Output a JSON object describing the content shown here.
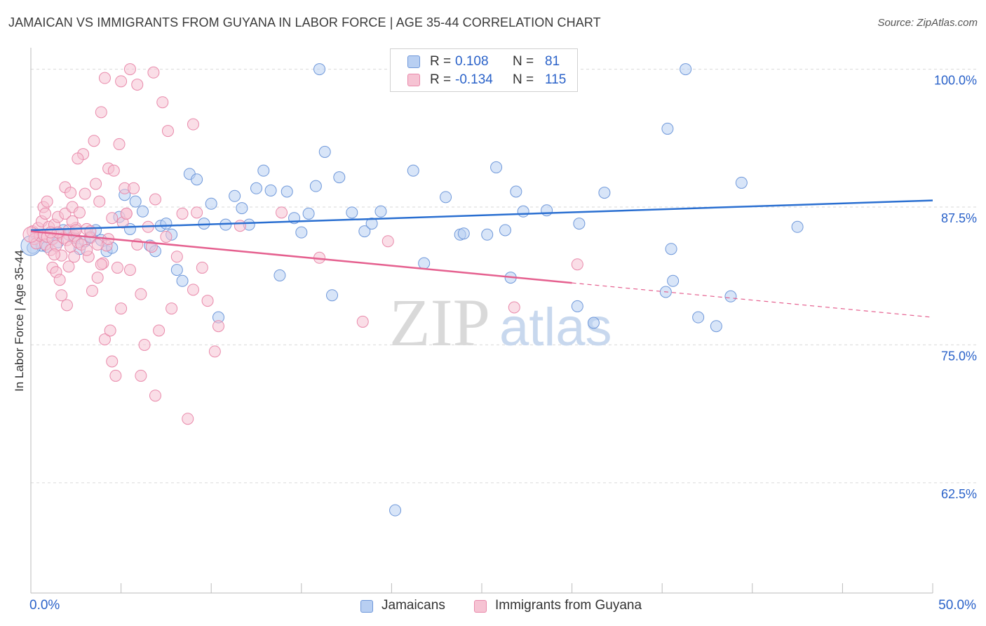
{
  "title": "JAMAICAN VS IMMIGRANTS FROM GUYANA IN LABOR FORCE | AGE 35-44 CORRELATION CHART",
  "source": "Source: ZipAtlas.com",
  "watermark": {
    "part1": "ZIP",
    "part2": "atlas"
  },
  "colors": {
    "blue": "#2a6fd1",
    "pink": "#e5608f",
    "blue_fill": "#b8cff2",
    "pink_fill": "#f6c3d3",
    "tick_text": "#2a62c9",
    "grid": "#d9d9d9"
  },
  "legend": {
    "rows": [
      {
        "r_label": "R =",
        "r_value": "0.108",
        "n_label": "N =",
        "n_value": "81"
      },
      {
        "r_label": "R =",
        "r_value": "-0.134",
        "n_label": "N =",
        "n_value": "115"
      }
    ]
  },
  "bottom_legend": {
    "blue": "Jamaicans",
    "pink": "Immigrants from Guyana"
  },
  "chart_data": {
    "type": "scatter",
    "title": "JAMAICAN VS IMMIGRANTS FROM GUYANA IN LABOR FORCE | AGE 35-44 CORRELATION CHART",
    "xlabel": "",
    "ylabel": "In Labor Force | Age 35-44",
    "xlim": [
      0,
      50
    ],
    "ylim": [
      52.5,
      101.5
    ],
    "x_tick_labels": [
      "0.0%",
      "50.0%"
    ],
    "y_ticks": [
      62.5,
      75.0,
      87.5,
      100.0
    ],
    "y_tick_labels": [
      "62.5%",
      "75.0%",
      "87.5%",
      "100.0%"
    ],
    "grid": "horizontal dashed",
    "series": [
      {
        "name": "Jamaicans",
        "color": "#2a6fd1",
        "trend": {
          "x0": 0,
          "y0": 85.4,
          "x1": 50,
          "y1": 88.1,
          "solid_until": 50
        },
        "points": [
          [
            0.1,
            83.8
          ],
          [
            0.3,
            85.0
          ],
          [
            0.6,
            84.0
          ],
          [
            0.9,
            83.9
          ],
          [
            1.2,
            84.6
          ],
          [
            1.5,
            84.3
          ],
          [
            1.8,
            85.4
          ],
          [
            2.1,
            85.0
          ],
          [
            2.4,
            84.7
          ],
          [
            2.7,
            83.7
          ],
          [
            3.0,
            84.4
          ],
          [
            3.3,
            84.8
          ],
          [
            3.6,
            85.4
          ],
          [
            3.9,
            84.5
          ],
          [
            4.2,
            83.5
          ],
          [
            4.5,
            83.8
          ],
          [
            4.9,
            86.6
          ],
          [
            5.2,
            88.6
          ],
          [
            5.5,
            85.5
          ],
          [
            5.8,
            88.0
          ],
          [
            6.2,
            87.1
          ],
          [
            6.6,
            84.0
          ],
          [
            6.9,
            83.5
          ],
          [
            7.2,
            85.8
          ],
          [
            7.5,
            86.0
          ],
          [
            7.8,
            85.0
          ],
          [
            8.1,
            81.8
          ],
          [
            8.4,
            80.8
          ],
          [
            8.8,
            90.5
          ],
          [
            9.2,
            90.0
          ],
          [
            9.6,
            86.0
          ],
          [
            10.0,
            87.8
          ],
          [
            10.4,
            77.5
          ],
          [
            10.8,
            85.9
          ],
          [
            11.3,
            88.5
          ],
          [
            11.7,
            87.4
          ],
          [
            12.1,
            85.9
          ],
          [
            12.5,
            89.2
          ],
          [
            12.9,
            90.8
          ],
          [
            13.3,
            89.0
          ],
          [
            13.8,
            81.3
          ],
          [
            14.2,
            88.9
          ],
          [
            14.6,
            86.5
          ],
          [
            15.0,
            85.2
          ],
          [
            15.4,
            86.9
          ],
          [
            15.8,
            89.4
          ],
          [
            16.3,
            92.5
          ],
          [
            16.7,
            79.5
          ],
          [
            17.1,
            90.2
          ],
          [
            16.0,
            100.0
          ],
          [
            17.8,
            87.0
          ],
          [
            18.5,
            85.3
          ],
          [
            18.9,
            86.0
          ],
          [
            19.4,
            87.1
          ],
          [
            20.2,
            60.0
          ],
          [
            21.2,
            90.8
          ],
          [
            21.8,
            82.4
          ],
          [
            23.0,
            88.4
          ],
          [
            23.8,
            85.0
          ],
          [
            24.0,
            85.1
          ],
          [
            25.3,
            85.0
          ],
          [
            25.8,
            91.1
          ],
          [
            26.3,
            85.4
          ],
          [
            26.6,
            81.1
          ],
          [
            26.9,
            88.9
          ],
          [
            27.3,
            87.1
          ],
          [
            28.6,
            87.2
          ],
          [
            30.4,
            86.0
          ],
          [
            31.2,
            77.0
          ],
          [
            31.8,
            88.8
          ],
          [
            35.2,
            79.8
          ],
          [
            35.5,
            83.7
          ],
          [
            36.3,
            100.0
          ],
          [
            37.0,
            77.5
          ],
          [
            38.0,
            76.7
          ],
          [
            39.4,
            89.7
          ],
          [
            35.6,
            80.8
          ],
          [
            30.3,
            78.5
          ],
          [
            35.3,
            94.6
          ],
          [
            42.5,
            85.7
          ],
          [
            38.8,
            79.4
          ]
        ]
      },
      {
        "name": "Immigrants from Guyana",
        "color": "#e5608f",
        "trend": {
          "x0": 0,
          "y0": 85.3,
          "x1": 50,
          "y1": 77.5,
          "solid_until": 30.0
        },
        "points": [
          [
            0.1,
            85.3
          ],
          [
            0.2,
            84.6
          ],
          [
            0.3,
            84.2
          ],
          [
            0.4,
            85.6
          ],
          [
            0.5,
            84.9
          ],
          [
            0.6,
            86.2
          ],
          [
            0.7,
            85.0
          ],
          [
            0.8,
            84.1
          ],
          [
            0.9,
            84.8
          ],
          [
            1.0,
            85.7
          ],
          [
            1.1,
            83.6
          ],
          [
            1.2,
            84.6
          ],
          [
            1.3,
            85.9
          ],
          [
            1.4,
            84.0
          ],
          [
            1.5,
            86.6
          ],
          [
            1.6,
            85.1
          ],
          [
            1.7,
            83.1
          ],
          [
            1.8,
            84.7
          ],
          [
            1.9,
            86.9
          ],
          [
            2.0,
            84.5
          ],
          [
            2.1,
            85.4
          ],
          [
            2.2,
            83.9
          ],
          [
            2.3,
            87.5
          ],
          [
            2.4,
            84.9
          ],
          [
            2.5,
            85.6
          ],
          [
            0.7,
            87.5
          ],
          [
            0.9,
            88.0
          ],
          [
            1.2,
            82.0
          ],
          [
            1.4,
            81.6
          ],
          [
            1.6,
            80.9
          ],
          [
            1.7,
            79.5
          ],
          [
            1.9,
            89.3
          ],
          [
            2.0,
            78.6
          ],
          [
            2.2,
            88.8
          ],
          [
            2.4,
            83.0
          ],
          [
            2.6,
            84.3
          ],
          [
            2.7,
            87.0
          ],
          [
            2.8,
            84.1
          ],
          [
            2.9,
            92.3
          ],
          [
            3.0,
            88.7
          ],
          [
            3.1,
            85.5
          ],
          [
            3.2,
            83.0
          ],
          [
            3.3,
            84.7
          ],
          [
            3.4,
            79.9
          ],
          [
            3.5,
            93.5
          ],
          [
            3.6,
            89.6
          ],
          [
            3.7,
            81.1
          ],
          [
            3.8,
            88.0
          ],
          [
            3.9,
            96.1
          ],
          [
            4.0,
            82.4
          ],
          [
            4.1,
            75.5
          ],
          [
            4.2,
            84.0
          ],
          [
            4.3,
            91.0
          ],
          [
            4.4,
            76.3
          ],
          [
            4.5,
            73.5
          ],
          [
            4.6,
            90.8
          ],
          [
            4.7,
            72.2
          ],
          [
            4.8,
            82.0
          ],
          [
            4.9,
            93.2
          ],
          [
            5.0,
            78.3
          ],
          [
            5.1,
            86.1
          ],
          [
            5.2,
            89.2
          ],
          [
            5.3,
            86.9
          ],
          [
            5.5,
            81.8
          ],
          [
            5.7,
            89.2
          ],
          [
            5.9,
            98.6
          ],
          [
            6.1,
            79.6
          ],
          [
            6.3,
            75.0
          ],
          [
            6.5,
            85.7
          ],
          [
            6.7,
            83.9
          ],
          [
            6.9,
            88.2
          ],
          [
            7.1,
            76.3
          ],
          [
            7.3,
            97.0
          ],
          [
            7.5,
            84.8
          ],
          [
            7.8,
            78.3
          ],
          [
            8.1,
            83.0
          ],
          [
            8.4,
            86.9
          ],
          [
            8.7,
            68.3
          ],
          [
            9.0,
            95.0
          ],
          [
            9.2,
            87.0
          ],
          [
            9.5,
            82.0
          ],
          [
            9.8,
            79.0
          ],
          [
            10.2,
            74.4
          ],
          [
            10.4,
            76.7
          ],
          [
            6.8,
            99.7
          ],
          [
            5.5,
            100.0
          ],
          [
            4.1,
            99.2
          ],
          [
            5.0,
            98.9
          ],
          [
            3.7,
            84.1
          ],
          [
            2.6,
            91.9
          ],
          [
            1.3,
            83.2
          ],
          [
            1.5,
            85.2
          ],
          [
            0.8,
            86.9
          ],
          [
            1.1,
            85.2
          ],
          [
            2.1,
            82.1
          ],
          [
            2.3,
            86.2
          ],
          [
            2.5,
            85.4
          ],
          [
            3.1,
            83.6
          ],
          [
            3.3,
            85.3
          ],
          [
            3.9,
            82.3
          ],
          [
            4.3,
            84.6
          ],
          [
            4.5,
            86.5
          ],
          [
            5.3,
            86.9
          ],
          [
            5.9,
            84.1
          ],
          [
            6.1,
            72.2
          ],
          [
            6.9,
            70.4
          ],
          [
            9.0,
            80.0
          ],
          [
            13.9,
            87.0
          ],
          [
            16.0,
            82.9
          ],
          [
            18.4,
            77.1
          ],
          [
            19.8,
            84.4
          ],
          [
            26.8,
            78.4
          ],
          [
            30.3,
            82.3
          ],
          [
            7.6,
            94.4
          ],
          [
            11.6,
            85.8
          ]
        ]
      }
    ]
  },
  "y_axis_label": "In Labor Force | Age 35-44",
  "x_tick_left": "0.0%",
  "x_tick_right": "50.0%"
}
